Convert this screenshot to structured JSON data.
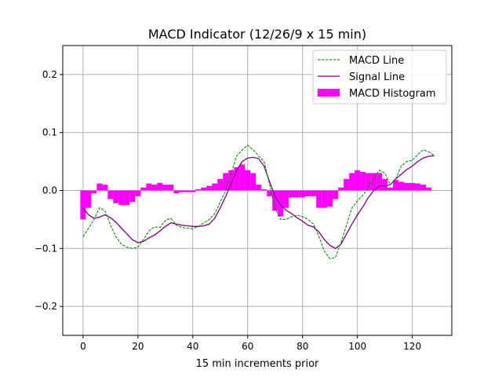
{
  "chart_data": {
    "type": "line",
    "title": "MACD Indicator (12/26/9 x 15 min)",
    "xlabel": "15 min increments prior",
    "ylabel": "",
    "xlim": [
      -7.4,
      134.4
    ],
    "ylim": [
      -0.25,
      0.25
    ],
    "xticks": [
      0,
      20,
      40,
      60,
      80,
      100,
      120
    ],
    "xtick_labels": [
      "0",
      "20",
      "40",
      "60",
      "80",
      "100",
      "120"
    ],
    "yticks": [
      -0.2,
      -0.1,
      0.0,
      0.1,
      0.2
    ],
    "ytick_labels": [
      "−0.2",
      "−0.1",
      "0.0",
      "0.1",
      "0.2"
    ],
    "grid": true,
    "legend_position": "top-right",
    "x": [
      0,
      2,
      4,
      6,
      8,
      10,
      12,
      14,
      16,
      18,
      20,
      22,
      24,
      26,
      28,
      30,
      32,
      34,
      36,
      38,
      40,
      42,
      44,
      46,
      48,
      50,
      52,
      54,
      56,
      58,
      60,
      62,
      64,
      66,
      68,
      70,
      72,
      74,
      76,
      78,
      80,
      82,
      84,
      86,
      88,
      90,
      92,
      94,
      96,
      98,
      100,
      102,
      104,
      106,
      108,
      110,
      112,
      114,
      116,
      118,
      120,
      122,
      124,
      126,
      128
    ],
    "series": [
      {
        "name": "MACD Line",
        "color": "#008000",
        "style": "dashed",
        "values": [
          -0.08,
          -0.065,
          -0.05,
          -0.03,
          -0.035,
          -0.06,
          -0.08,
          -0.093,
          -0.098,
          -0.1,
          -0.098,
          -0.085,
          -0.07,
          -0.063,
          -0.064,
          -0.052,
          -0.048,
          -0.06,
          -0.064,
          -0.065,
          -0.066,
          -0.062,
          -0.056,
          -0.05,
          -0.04,
          -0.02,
          0.0,
          0.03,
          0.06,
          0.07,
          0.078,
          0.07,
          0.06,
          0.05,
          0.01,
          -0.03,
          -0.05,
          -0.05,
          -0.045,
          -0.043,
          -0.045,
          -0.05,
          -0.058,
          -0.08,
          -0.105,
          -0.118,
          -0.115,
          -0.09,
          -0.06,
          -0.03,
          -0.018,
          -0.008,
          0.005,
          0.02,
          0.035,
          0.03,
          0.01,
          0.02,
          0.042,
          0.05,
          0.052,
          0.062,
          0.07,
          0.067,
          0.06
        ]
      },
      {
        "name": "Signal Line",
        "color": "#800080",
        "style": "solid",
        "values": [
          -0.03,
          -0.042,
          -0.048,
          -0.046,
          -0.042,
          -0.047,
          -0.055,
          -0.065,
          -0.075,
          -0.085,
          -0.09,
          -0.088,
          -0.082,
          -0.077,
          -0.07,
          -0.062,
          -0.056,
          -0.058,
          -0.06,
          -0.061,
          -0.062,
          -0.062,
          -0.061,
          -0.058,
          -0.048,
          -0.03,
          -0.01,
          0.012,
          0.035,
          0.05,
          0.056,
          0.057,
          0.055,
          0.042,
          0.015,
          -0.01,
          -0.025,
          -0.034,
          -0.04,
          -0.047,
          -0.053,
          -0.06,
          -0.063,
          -0.072,
          -0.085,
          -0.095,
          -0.1,
          -0.093,
          -0.075,
          -0.058,
          -0.042,
          -0.028,
          -0.012,
          0.0,
          0.008,
          0.008,
          0.01,
          0.02,
          0.028,
          0.036,
          0.042,
          0.05,
          0.056,
          0.059,
          0.06
        ]
      },
      {
        "name": "MACD Histogram",
        "color": "#ff00ff",
        "style": "bar",
        "values": [
          -0.05,
          -0.03,
          -0.005,
          0.012,
          0.01,
          -0.015,
          -0.022,
          -0.025,
          -0.025,
          -0.02,
          -0.01,
          0.005,
          0.012,
          0.01,
          0.013,
          0.01,
          0.01,
          -0.005,
          -0.003,
          -0.003,
          -0.003,
          0.002,
          0.005,
          0.008,
          0.012,
          0.02,
          0.03,
          0.035,
          0.04,
          0.045,
          0.035,
          0.03,
          0.01,
          0.002,
          -0.01,
          -0.035,
          -0.045,
          -0.03,
          -0.012,
          -0.012,
          -0.012,
          -0.01,
          -0.01,
          -0.03,
          -0.03,
          -0.028,
          -0.015,
          0.005,
          0.02,
          0.03,
          0.035,
          0.032,
          0.03,
          0.03,
          0.03,
          0.02,
          0.005,
          0.018,
          0.015,
          0.013,
          0.013,
          0.012,
          0.01,
          0.005,
          0.0
        ]
      }
    ]
  }
}
